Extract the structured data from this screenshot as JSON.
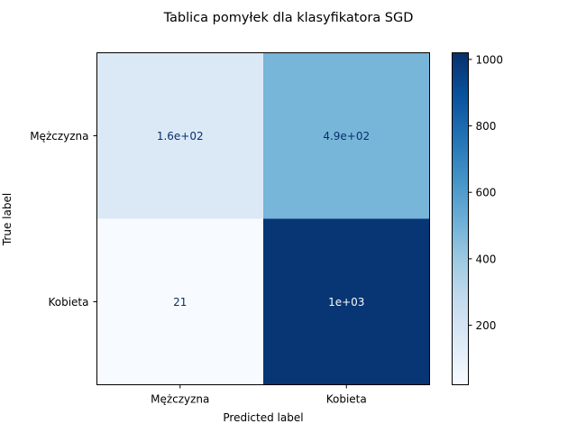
{
  "chart_data": {
    "type": "heatmap",
    "title": "Tablica pomyłek dla klasyfikatora SGD",
    "xlabel": "Predicted label",
    "ylabel": "True label",
    "x_categories": [
      "Mężczyzna",
      "Kobieta"
    ],
    "y_categories": [
      "Mężczyzna",
      "Kobieta"
    ],
    "values": [
      [
        160,
        490
      ],
      [
        21,
        1000
      ]
    ],
    "cell_labels": [
      [
        "1.6e+02",
        "4.9e+02"
      ],
      [
        "21",
        "1e+03"
      ]
    ],
    "colormap": "Blues",
    "color_range": [
      21,
      1020
    ],
    "colorbar_ticks": [
      200,
      400,
      600,
      800,
      1000
    ],
    "colorbar_tick_labels": [
      "200",
      "400",
      "600",
      "800",
      "1000"
    ],
    "grid": false,
    "colors": {
      "low": "#f7fbff",
      "high": "#08306b",
      "dark_text": "#08306b",
      "light_text": "#f7fbff"
    }
  }
}
